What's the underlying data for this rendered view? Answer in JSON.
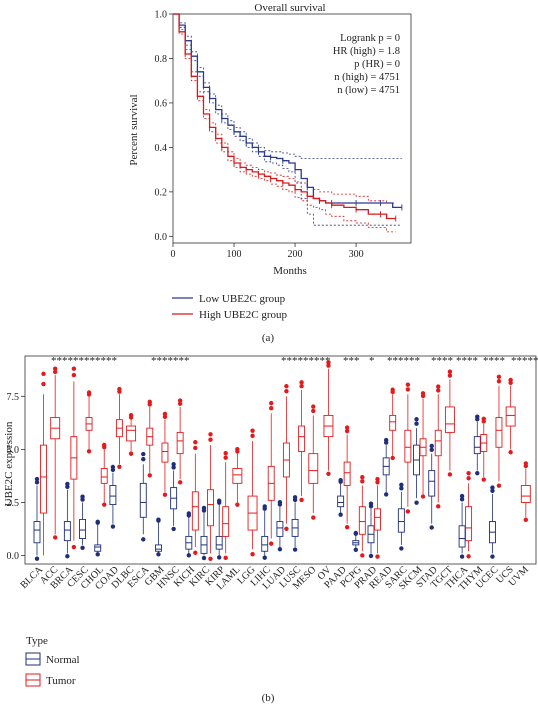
{
  "panel_a": {
    "label": "(a)",
    "chart_data": {
      "type": "line",
      "title": "Overall survival",
      "xlabel": "Months",
      "ylabel": "Percent survival",
      "xlim": [
        0,
        390
      ],
      "ylim": [
        -0.03,
        1.0
      ],
      "xticks": [
        0,
        100,
        200,
        300
      ],
      "yticks": [
        0.0,
        0.2,
        0.4,
        0.6,
        0.8,
        1.0
      ],
      "tick_labels_x": [
        "0",
        "100",
        "200",
        "300"
      ],
      "tick_labels_y": [
        "0.0",
        "0.2",
        "0.4",
        "0.6",
        "0.8",
        "1.0"
      ],
      "stats": {
        "line1": "Logrank p = 0",
        "line2": "HR (high) = 1.8",
        "line3": "p (HR) = 0",
        "line4": "n (high) = 4751",
        "line5": "n (low) = 4751"
      },
      "legend": {
        "low": "Low UBE2C group",
        "high": "High UBE2C group"
      },
      "series": [
        {
          "name": "Low UBE2C group",
          "color": "#2b3990",
          "x": [
            0,
            10,
            20,
            30,
            40,
            50,
            60,
            70,
            80,
            90,
            100,
            110,
            120,
            130,
            140,
            150,
            160,
            170,
            180,
            190,
            200,
            210,
            220,
            230,
            240,
            250,
            260,
            280,
            300,
            320,
            340,
            360,
            375
          ],
          "y": [
            1.0,
            0.95,
            0.88,
            0.81,
            0.74,
            0.67,
            0.62,
            0.57,
            0.53,
            0.5,
            0.47,
            0.45,
            0.42,
            0.4,
            0.38,
            0.36,
            0.355,
            0.35,
            0.34,
            0.33,
            0.3,
            0.26,
            0.22,
            0.17,
            0.16,
            0.15,
            0.15,
            0.15,
            0.15,
            0.15,
            0.15,
            0.13,
            0.13
          ],
          "ci_upper": [
            1.0,
            0.96,
            0.9,
            0.83,
            0.76,
            0.69,
            0.64,
            0.59,
            0.55,
            0.52,
            0.49,
            0.47,
            0.44,
            0.42,
            0.4,
            0.385,
            0.38,
            0.38,
            0.375,
            0.37,
            0.36,
            0.35,
            0.35,
            0.35,
            0.35,
            0.35,
            0.35,
            0.35,
            0.35,
            0.35,
            0.35,
            0.35,
            0.35
          ],
          "ci_lower": [
            1.0,
            0.94,
            0.86,
            0.79,
            0.72,
            0.65,
            0.6,
            0.55,
            0.51,
            0.48,
            0.45,
            0.43,
            0.4,
            0.38,
            0.36,
            0.335,
            0.33,
            0.32,
            0.305,
            0.29,
            0.24,
            0.17,
            0.1,
            0.05,
            0.05,
            0.05,
            0.05,
            0.05,
            0.05,
            0.05,
            0.05,
            0.05,
            0.05
          ]
        },
        {
          "name": "High UBE2C group",
          "color": "#d7191c",
          "x": [
            0,
            10,
            20,
            30,
            40,
            50,
            60,
            70,
            80,
            90,
            100,
            110,
            120,
            130,
            140,
            150,
            160,
            170,
            180,
            190,
            200,
            210,
            220,
            230,
            240,
            250,
            260,
            280,
            300,
            320,
            340,
            350,
            365
          ],
          "y": [
            1.0,
            0.92,
            0.82,
            0.72,
            0.63,
            0.55,
            0.49,
            0.44,
            0.4,
            0.36,
            0.33,
            0.31,
            0.3,
            0.29,
            0.28,
            0.27,
            0.26,
            0.25,
            0.24,
            0.23,
            0.21,
            0.2,
            0.18,
            0.17,
            0.16,
            0.15,
            0.14,
            0.13,
            0.12,
            0.1,
            0.1,
            0.08,
            0.08
          ],
          "ci_upper": [
            1.0,
            0.93,
            0.84,
            0.74,
            0.65,
            0.57,
            0.51,
            0.46,
            0.42,
            0.38,
            0.35,
            0.33,
            0.32,
            0.31,
            0.3,
            0.29,
            0.285,
            0.275,
            0.27,
            0.26,
            0.245,
            0.24,
            0.22,
            0.21,
            0.2,
            0.2,
            0.19,
            0.19,
            0.18,
            0.16,
            0.16,
            0.15,
            0.15
          ],
          "ci_lower": [
            1.0,
            0.91,
            0.8,
            0.7,
            0.61,
            0.53,
            0.47,
            0.42,
            0.38,
            0.34,
            0.31,
            0.29,
            0.28,
            0.27,
            0.26,
            0.25,
            0.235,
            0.225,
            0.21,
            0.2,
            0.175,
            0.16,
            0.14,
            0.13,
            0.12,
            0.1,
            0.09,
            0.07,
            0.06,
            0.04,
            0.04,
            0.02,
            0.02
          ]
        }
      ]
    }
  },
  "panel_b": {
    "label": "(b)",
    "chart_data": {
      "type": "box",
      "ylabel": "UBE2C expression",
      "ylim": [
        -0.4,
        9.4
      ],
      "yticks": [
        0.0,
        2.5,
        5.0,
        7.5
      ],
      "tick_labels_y": [
        "0.0",
        "2.5",
        "5.0",
        "7.5"
      ],
      "legend_title": "Type",
      "legend_normal": "Normal",
      "legend_tumor": "Tumor",
      "colors": {
        "normal": "#1f2f7a",
        "tumor": "#e41a1c"
      },
      "categories": [
        "BLCA",
        "ACC",
        "BRCA",
        "CESC",
        "CHOL",
        "COAD",
        "DLBC",
        "ESCA",
        "GBM",
        "HNSC",
        "KICH",
        "KIRC",
        "KIRP",
        "LAML",
        "LGG",
        "LIHC",
        "LUAD",
        "LUSC",
        "MESO",
        "OV",
        "PAAD",
        "PCPG",
        "PRAD",
        "READ",
        "SARC",
        "SKCM",
        "STAD",
        "TGCT",
        "THCA",
        "THYM",
        "UCEC",
        "UCS",
        "UVM"
      ],
      "significance": [
        "*",
        "*",
        "*",
        "*",
        "*",
        "*",
        "*",
        "*",
        "*",
        "*",
        "*",
        "*",
        "*",
        "*",
        "*",
        "*",
        "*",
        "*",
        "*",
        "*",
        "*",
        "*",
        "*",
        "*",
        "*",
        "*",
        "*",
        "*",
        "*",
        "*",
        "*",
        "*",
        "*",
        "*",
        "*",
        "*",
        "*",
        "*",
        "*",
        "*",
        "*",
        "*",
        "*",
        "*",
        "*",
        "*",
        "*",
        "*",
        "*",
        "*",
        "*",
        "*",
        "*",
        "*",
        "*",
        "*",
        "*",
        "*",
        "*",
        "*",
        "*",
        "*"
      ],
      "tumor": [
        [
          0.0,
          2.0,
          3.7,
          5.2,
          7.6
        ],
        [
          1.0,
          5.5,
          6.0,
          6.5,
          8.5
        ],
        [
          0.7,
          3.6,
          4.6,
          5.6,
          8.2
        ],
        [
          5.0,
          5.9,
          6.2,
          6.5,
          7.5
        ],
        [
          2.5,
          3.4,
          3.7,
          4.1,
          5.0
        ],
        [
          4.3,
          5.6,
          6.0,
          6.4,
          7.6
        ],
        [
          4.9,
          5.4,
          5.9,
          6.1,
          6.4
        ],
        [
          3.9,
          5.2,
          5.6,
          6.0,
          7.0
        ],
        [
          3.0,
          4.4,
          4.9,
          5.3,
          6.4
        ],
        [
          3.6,
          4.8,
          5.4,
          5.8,
          7.0
        ],
        [
          0.4,
          1.2,
          2.3,
          3.0,
          4.8
        ],
        [
          0.1,
          1.4,
          2.4,
          3.1,
          5.2
        ],
        [
          0.1,
          0.9,
          1.5,
          2.3,
          4.4
        ],
        [
          2.5,
          3.4,
          3.8,
          4.1,
          4.8
        ],
        [
          0.3,
          1.2,
          2.0,
          2.8,
          5.4
        ],
        [
          0.8,
          2.6,
          3.4,
          4.2,
          6.7
        ],
        [
          1.5,
          3.7,
          4.5,
          5.3,
          7.5
        ],
        [
          2.8,
          4.9,
          5.6,
          6.1,
          7.8
        ],
        [
          2.0,
          3.4,
          4.0,
          4.8,
          6.6
        ],
        [
          4.0,
          5.6,
          6.1,
          6.6,
          8.8
        ],
        [
          1.5,
          3.3,
          3.9,
          4.4,
          5.7
        ],
        [
          0.2,
          1.0,
          1.6,
          2.3,
          3.3
        ],
        [
          0.1,
          1.2,
          1.8,
          2.2,
          3.3
        ],
        [
          4.7,
          5.9,
          6.3,
          6.6,
          7.6
        ],
        [
          2.3,
          4.4,
          5.1,
          5.9,
          7.6
        ],
        [
          2.9,
          4.7,
          5.1,
          5.5,
          7.4
        ],
        [
          2.5,
          4.7,
          5.4,
          5.9,
          7.6
        ],
        [
          4.0,
          5.8,
          6.2,
          7.0,
          8.3
        ],
        [
          0.2,
          0.7,
          1.3,
          2.3,
          3.4
        ],
        [
          3.7,
          4.9,
          5.3,
          5.7,
          6.2
        ],
        [
          3.5,
          5.1,
          5.9,
          6.5,
          8.0
        ],
        [
          5.0,
          6.1,
          6.6,
          7.0,
          8.0
        ],
        [
          1.8,
          2.5,
          2.8,
          3.3,
          4.1
        ]
      ],
      "normal": [
        [
          0.0,
          0.6,
          1.2,
          1.6,
          3.3
        ],
        null,
        [
          0.1,
          0.7,
          1.2,
          1.6,
          3.1
        ],
        [
          0.5,
          0.8,
          1.2,
          1.7,
          2.5
        ],
        [
          0.1,
          0.2,
          0.4,
          0.5,
          1.5
        ],
        [
          1.5,
          2.4,
          2.8,
          3.3,
          3.9
        ],
        null,
        [
          1.0,
          1.8,
          2.5,
          3.4,
          4.3
        ],
        [
          0.1,
          0.2,
          0.3,
          0.5,
          1.6
        ],
        [
          1.4,
          2.2,
          2.7,
          3.2,
          4.0
        ],
        [
          0.1,
          0.3,
          0.6,
          0.9,
          1.8
        ],
        [
          0.0,
          0.1,
          0.5,
          0.9,
          2.0
        ],
        [
          0.0,
          0.3,
          0.5,
          0.9,
          2.4
        ],
        null,
        null,
        [
          0.0,
          0.2,
          0.5,
          0.9,
          2.1
        ],
        [
          0.4,
          0.9,
          1.3,
          1.6,
          2.3
        ],
        [
          0.4,
          0.9,
          1.3,
          1.7,
          2.5
        ],
        null,
        null,
        [
          2.0,
          2.3,
          2.5,
          2.8,
          3.4
        ],
        [
          0.3,
          0.5,
          0.6,
          0.7,
          1.0
        ],
        [
          0.1,
          0.6,
          1.0,
          1.4,
          2.2
        ],
        [
          3.0,
          3.8,
          4.2,
          4.6,
          5.2
        ],
        [
          0.5,
          1.1,
          1.6,
          2.2,
          3.0
        ],
        [
          2.7,
          3.8,
          4.5,
          5.2,
          6.0
        ],
        [
          1.5,
          2.8,
          3.5,
          4.0,
          4.8
        ],
        null,
        [
          0.1,
          0.4,
          0.8,
          1.4,
          2.5
        ],
        [
          4.0,
          4.8,
          5.1,
          5.6,
          6.3
        ],
        [
          0.1,
          0.6,
          1.1,
          1.6,
          2.9
        ],
        null,
        null
      ]
    }
  }
}
